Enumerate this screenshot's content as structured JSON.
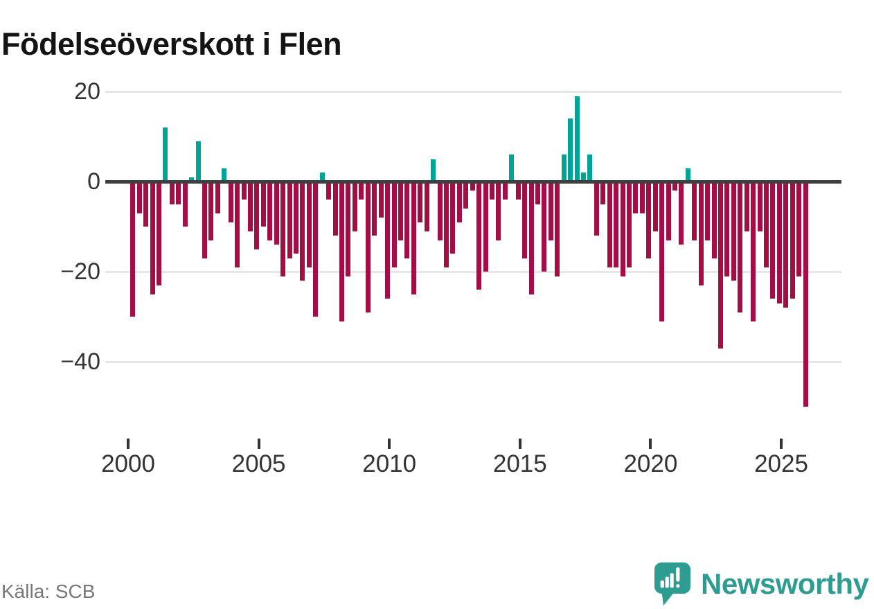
{
  "title": "Födelseöverskott i Flen",
  "source": "Källa: SCB",
  "branding": {
    "name": "Newsworthy",
    "icon": "newsworthy-logo-icon",
    "color": "#2f9c92"
  },
  "colors": {
    "negative_bar": "#a50d45",
    "positive_bar": "#00a496",
    "zero_line": "#3f3f3f",
    "gridline": "#e7e7e7",
    "axis_text": "#333333",
    "title_text": "#141414",
    "source_text": "#787878"
  },
  "chart_data": {
    "type": "bar",
    "title": "Födelseöverskott i Flen",
    "x_unit": "quarter",
    "x_range": "2000Q1–2025Q4",
    "x_tick_labels": [
      "2000",
      "2005",
      "2010",
      "2015",
      "2020",
      "2025"
    ],
    "x_tick_years": [
      2000,
      2005,
      2010,
      2015,
      2020,
      2025
    ],
    "y_ticks": [
      20,
      0,
      -20,
      -40
    ],
    "y_tick_labels": [
      "20",
      "0",
      "−20",
      "−40"
    ],
    "ylim": [
      -52,
      22
    ],
    "grid": "horizontal",
    "legend": "none",
    "series": [
      {
        "name": "Födelseöverskott",
        "start": "2000 Q1",
        "frequency": "quarterly",
        "values": [
          -30,
          -7,
          -10,
          -25,
          -23,
          12,
          -5,
          -5,
          -10,
          1,
          9,
          -17,
          -13,
          -7,
          3,
          -9,
          -19,
          -4,
          -11,
          -15,
          -10,
          -13,
          -14,
          -21,
          -17,
          -16,
          -22,
          -19,
          -30,
          2,
          -4,
          -12,
          -31,
          -21,
          -11,
          -4,
          -29,
          -12,
          -8,
          -26,
          -19,
          -13,
          -17,
          -25,
          -9,
          -11,
          5,
          -13,
          -19,
          -16,
          -9,
          -6,
          -2,
          -24,
          -20,
          -4,
          -13,
          -4,
          6,
          -4,
          -17,
          -25,
          -5,
          -20,
          -13,
          -21,
          6,
          14,
          19,
          2,
          6,
          -12,
          -5,
          -19,
          -19,
          -21,
          -19,
          -7,
          -7,
          -17,
          -11,
          -31,
          -13,
          -2,
          -14,
          3,
          -13,
          -23,
          -13,
          -17,
          -37,
          -21,
          -22,
          -29,
          -11,
          -31,
          -11,
          -19,
          -26,
          -27,
          -28,
          -26,
          -21,
          -50
        ]
      }
    ]
  }
}
